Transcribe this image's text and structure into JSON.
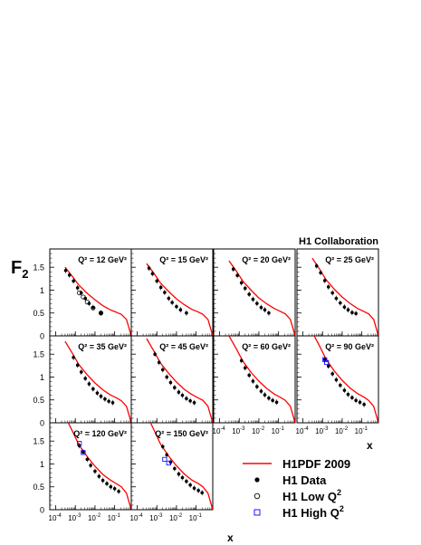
{
  "collaboration": "H1 Collaboration",
  "y_axis_label": {
    "main": "F",
    "sub": "2"
  },
  "x_axis_label": "x",
  "legend": {
    "curve": "H1PDF 2009",
    "h1_data": "H1 Data",
    "low_q2": {
      "text": "H1 Low Q",
      "sup": "2"
    },
    "high_q2": {
      "text": "H1 High Q",
      "sup": "2"
    }
  },
  "colors": {
    "curve": "#ff0000",
    "data": "#000000",
    "high_q2": "#0000ff",
    "low_q2": "#000000"
  },
  "y_ticks": [
    "0",
    "0.5",
    "1",
    "1.5"
  ],
  "x_ticks": [
    {
      "base": "10",
      "exp": "-4"
    },
    {
      "base": "10",
      "exp": "-3"
    },
    {
      "base": "10",
      "exp": "-2"
    },
    {
      "base": "10",
      "exp": "-1"
    }
  ],
  "chart_data": {
    "type": "scatter",
    "xscale": "log",
    "xlim": [
      5e-05,
      0.7
    ],
    "ylim": [
      0,
      1.9
    ],
    "panels": [
      {
        "label": "Q² = 12 GeV²",
        "q2": "12",
        "curve_y": [
          1.5,
          1.3,
          1.11,
          0.93,
          0.79,
          0.66,
          0.57,
          0.51,
          0.47,
          0.36,
          0.0
        ],
        "h1_data": [
          [
            0.00032,
            1.43
          ],
          [
            0.0005,
            1.33
          ],
          [
            0.0008,
            1.2
          ],
          [
            0.0013,
            1.05
          ],
          [
            0.002,
            0.94
          ],
          [
            0.0032,
            0.82
          ],
          [
            0.005,
            0.71
          ],
          [
            0.008,
            0.62
          ],
          [
            0.02,
            0.5
          ]
        ],
        "low_q2": [
          [
            0.0016,
            0.94
          ],
          [
            0.0025,
            0.85
          ],
          [
            0.004,
            0.74
          ],
          [
            0.008,
            0.61
          ],
          [
            0.02,
            0.5
          ]
        ],
        "high_q2": []
      },
      {
        "label": "Q² = 15 GeV²",
        "q2": "15",
        "curve_y": [
          1.58,
          1.37,
          1.16,
          0.97,
          0.81,
          0.68,
          0.58,
          0.52,
          0.47,
          0.36,
          0.0
        ],
        "h1_data": [
          [
            0.0004,
            1.48
          ],
          [
            0.0006,
            1.36
          ],
          [
            0.001,
            1.2
          ],
          [
            0.0016,
            1.06
          ],
          [
            0.0025,
            0.95
          ],
          [
            0.004,
            0.82
          ],
          [
            0.006,
            0.73
          ],
          [
            0.01,
            0.64
          ],
          [
            0.016,
            0.57
          ],
          [
            0.032,
            0.5
          ]
        ],
        "low_q2": [],
        "high_q2": []
      },
      {
        "label": "Q² = 20 GeV²",
        "q2": "20",
        "curve_y": [
          1.64,
          1.42,
          1.2,
          1.0,
          0.83,
          0.7,
          0.6,
          0.53,
          0.48,
          0.36,
          0.0
        ],
        "h1_data": [
          [
            0.0005,
            1.46
          ],
          [
            0.0008,
            1.32
          ],
          [
            0.0013,
            1.16
          ],
          [
            0.002,
            1.04
          ],
          [
            0.0032,
            0.91
          ],
          [
            0.005,
            0.8
          ],
          [
            0.008,
            0.71
          ],
          [
            0.013,
            0.62
          ],
          [
            0.02,
            0.57
          ],
          [
            0.032,
            0.5
          ]
        ],
        "low_q2": [],
        "high_q2": []
      },
      {
        "label": "Q² = 25 GeV²",
        "q2": "25",
        "curve_y": [
          1.7,
          1.46,
          1.23,
          1.02,
          0.85,
          0.71,
          0.6,
          0.53,
          0.48,
          0.36,
          0.0
        ],
        "h1_data": [
          [
            0.0005,
            1.53
          ],
          [
            0.0008,
            1.38
          ],
          [
            0.0013,
            1.21
          ],
          [
            0.002,
            1.07
          ],
          [
            0.0032,
            0.94
          ],
          [
            0.005,
            0.82
          ],
          [
            0.008,
            0.72
          ],
          [
            0.013,
            0.63
          ],
          [
            0.02,
            0.57
          ],
          [
            0.032,
            0.51
          ],
          [
            0.05,
            0.49
          ]
        ],
        "low_q2": [],
        "high_q2": []
      },
      {
        "label": "Q² = 35 GeV²",
        "q2": "35",
        "curve_y": [
          1.78,
          1.52,
          1.27,
          1.05,
          0.87,
          0.72,
          0.61,
          0.54,
          0.48,
          0.36,
          0.0
        ],
        "h1_data": [
          [
            0.0008,
            1.43
          ],
          [
            0.0013,
            1.26
          ],
          [
            0.002,
            1.11
          ],
          [
            0.0032,
            0.97
          ],
          [
            0.005,
            0.85
          ],
          [
            0.008,
            0.74
          ],
          [
            0.013,
            0.65
          ],
          [
            0.02,
            0.58
          ],
          [
            0.032,
            0.52
          ],
          [
            0.05,
            0.47
          ],
          [
            0.08,
            0.44
          ]
        ],
        "low_q2": [],
        "high_q2": []
      },
      {
        "label": "Q² = 45 GeV²",
        "q2": "45",
        "curve_y": [
          1.84,
          1.57,
          1.31,
          1.08,
          0.89,
          0.73,
          0.62,
          0.54,
          0.49,
          0.36,
          0.0
        ],
        "h1_data": [
          [
            0.0008,
            1.5
          ],
          [
            0.0013,
            1.32
          ],
          [
            0.002,
            1.16
          ],
          [
            0.0032,
            1.0
          ],
          [
            0.005,
            0.88
          ],
          [
            0.008,
            0.77
          ],
          [
            0.013,
            0.67
          ],
          [
            0.02,
            0.6
          ],
          [
            0.032,
            0.53
          ],
          [
            0.05,
            0.48
          ],
          [
            0.08,
            0.44
          ]
        ],
        "low_q2": [],
        "high_q2": []
      },
      {
        "label": "Q² = 60 GeV²",
        "q2": "60",
        "curve_y": [
          1.9,
          1.62,
          1.35,
          1.1,
          0.91,
          0.75,
          0.63,
          0.55,
          0.49,
          0.36,
          0.0
        ],
        "h1_data": [
          [
            0.0013,
            1.36
          ],
          [
            0.002,
            1.2
          ],
          [
            0.0032,
            1.04
          ],
          [
            0.005,
            0.91
          ],
          [
            0.008,
            0.79
          ],
          [
            0.013,
            0.69
          ],
          [
            0.02,
            0.61
          ],
          [
            0.032,
            0.54
          ],
          [
            0.05,
            0.49
          ],
          [
            0.08,
            0.45
          ]
        ],
        "low_q2": [],
        "high_q2": []
      },
      {
        "label": "Q² = 90 GeV²",
        "q2": "90",
        "curve_y": [
          1.98,
          1.68,
          1.39,
          1.13,
          0.93,
          0.76,
          0.64,
          0.56,
          0.49,
          0.36,
          0.0
        ],
        "h1_data": [
          [
            0.0013,
            1.38
          ],
          [
            0.002,
            1.24
          ],
          [
            0.0032,
            1.07
          ],
          [
            0.005,
            0.94
          ],
          [
            0.008,
            0.82
          ],
          [
            0.013,
            0.71
          ],
          [
            0.02,
            0.62
          ],
          [
            0.032,
            0.55
          ],
          [
            0.05,
            0.49
          ],
          [
            0.08,
            0.45
          ],
          [
            0.13,
            0.4
          ]
        ],
        "low_q2": [],
        "high_q2": [
          [
            0.0013,
            1.38
          ],
          [
            0.0016,
            1.32
          ]
        ]
      },
      {
        "label": "Q² = 120 GeV²",
        "q2": "120",
        "curve_y": [
          2.04,
          1.72,
          1.42,
          1.16,
          0.95,
          0.77,
          0.65,
          0.56,
          0.5,
          0.36,
          0.0
        ],
        "h1_data": [
          [
            0.0016,
            1.4
          ],
          [
            0.0025,
            1.26
          ],
          [
            0.004,
            1.1
          ],
          [
            0.006,
            0.97
          ],
          [
            0.01,
            0.84
          ],
          [
            0.016,
            0.73
          ],
          [
            0.025,
            0.64
          ],
          [
            0.04,
            0.57
          ],
          [
            0.063,
            0.5
          ],
          [
            0.1,
            0.46
          ],
          [
            0.16,
            0.4
          ]
        ],
        "low_q2": [],
        "high_q2": [
          [
            0.0016,
            1.45
          ],
          [
            0.0025,
            1.25
          ]
        ]
      },
      {
        "label": "Q² = 150 GeV²",
        "q2": "150",
        "curve_y": [
          2.08,
          1.75,
          1.44,
          1.17,
          0.96,
          0.78,
          0.65,
          0.57,
          0.5,
          0.36,
          0.0
        ],
        "h1_data": [
          [
            0.002,
            1.38
          ],
          [
            0.0032,
            1.2
          ],
          [
            0.005,
            1.04
          ],
          [
            0.008,
            0.9
          ],
          [
            0.013,
            0.78
          ],
          [
            0.02,
            0.7
          ],
          [
            0.032,
            0.62
          ],
          [
            0.05,
            0.54
          ],
          [
            0.08,
            0.47
          ],
          [
            0.13,
            0.42
          ],
          [
            0.2,
            0.37
          ]
        ],
        "low_q2": [],
        "high_q2": [
          [
            0.0025,
            1.1
          ],
          [
            0.004,
            1.02
          ]
        ]
      }
    ]
  }
}
